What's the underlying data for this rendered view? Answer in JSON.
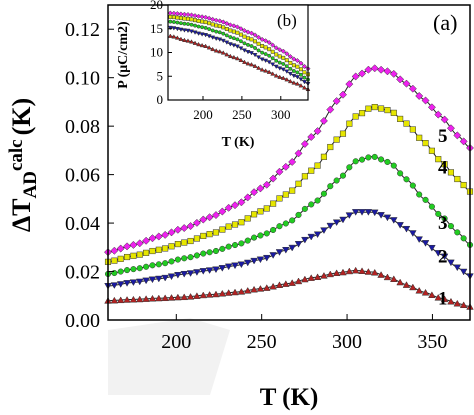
{
  "chart_data": [
    {
      "type": "scatter",
      "panel_label": "(a)",
      "xlabel": "T (K)",
      "ylabel_main": "ΔT",
      "ylabel_sub": "AD",
      "ylabel_sup": "calc",
      "ylabel_unit": "(K)",
      "xlim": [
        160,
        372
      ],
      "ylim": [
        0,
        0.13
      ],
      "xticks": [
        "200",
        "250",
        "300",
        "350"
      ],
      "yticks": [
        "0.00",
        "0.02",
        "0.04",
        "0.06",
        "0.08",
        "0.10",
        "0.12"
      ],
      "grid": false,
      "x": [
        160,
        175,
        190,
        205,
        220,
        235,
        250,
        265,
        280,
        295,
        305,
        315,
        325,
        335,
        345,
        355,
        365,
        372
      ],
      "series": [
        {
          "name": "1",
          "color": "#b22222",
          "marker": "triangle-up",
          "values": [
            0.008,
            0.0085,
            0.009,
            0.0095,
            0.0105,
            0.0115,
            0.013,
            0.015,
            0.0175,
            0.0195,
            0.0205,
            0.0198,
            0.0175,
            0.0145,
            0.0115,
            0.009,
            0.0068,
            0.0055
          ]
        },
        {
          "name": "2",
          "color": "#1a1aa0",
          "marker": "triangle-down",
          "values": [
            0.014,
            0.0155,
            0.017,
            0.019,
            0.0205,
            0.0225,
            0.025,
            0.029,
            0.0345,
            0.0405,
            0.0445,
            0.0445,
            0.042,
            0.0375,
            0.032,
            0.027,
            0.0215,
            0.018
          ]
        },
        {
          "name": "3",
          "color": "#22cc22",
          "marker": "circle",
          "values": [
            0.019,
            0.021,
            0.023,
            0.0255,
            0.028,
            0.031,
            0.035,
            0.04,
            0.048,
            0.058,
            0.0655,
            0.0675,
            0.065,
            0.058,
            0.05,
            0.043,
            0.036,
            0.031
          ]
        },
        {
          "name": "4",
          "color": "#e6e600",
          "marker": "square",
          "values": [
            0.024,
            0.0265,
            0.029,
            0.032,
            0.0355,
            0.0395,
            0.045,
            0.052,
            0.062,
            0.075,
            0.084,
            0.088,
            0.0865,
            0.081,
            0.0735,
            0.0655,
            0.058,
            0.053
          ]
        },
        {
          "name": "5",
          "color": "#ee22ee",
          "marker": "diamond",
          "values": [
            0.028,
            0.031,
            0.0345,
            0.038,
            0.0425,
            0.0475,
            0.0545,
            0.0635,
            0.076,
            0.091,
            0.1005,
            0.104,
            0.1025,
            0.0975,
            0.091,
            0.084,
            0.076,
            0.071
          ]
        }
      ]
    },
    {
      "type": "scatter",
      "panel_label": "(b)",
      "xlabel": "T (K)",
      "ylabel": "P (μC/cm2)",
      "xlim": [
        155,
        335
      ],
      "ylim": [
        0,
        20
      ],
      "xticks": [
        "200",
        "250",
        "300"
      ],
      "yticks": [
        "0",
        "5",
        "10",
        "15",
        "20"
      ],
      "x": [
        158,
        180,
        200,
        220,
        240,
        260,
        280,
        300,
        320,
        335
      ],
      "series": [
        {
          "color": "#b22222",
          "marker": "triangle-up",
          "values": [
            13.5,
            12.5,
            11.5,
            10.3,
            9.0,
            7.6,
            6.2,
            4.8,
            3.5,
            2.3
          ]
        },
        {
          "color": "#1a1aa0",
          "marker": "triangle-down",
          "values": [
            15.2,
            14.6,
            13.8,
            12.8,
            11.5,
            10.0,
            8.3,
            6.6,
            4.9,
            3.4
          ]
        },
        {
          "color": "#22cc22",
          "marker": "circle",
          "values": [
            16.5,
            16.0,
            15.3,
            14.3,
            13.0,
            11.5,
            9.7,
            7.8,
            5.9,
            4.3
          ]
        },
        {
          "color": "#e6e600",
          "marker": "square",
          "values": [
            17.5,
            17.1,
            16.5,
            15.6,
            14.4,
            12.9,
            11.1,
            9.1,
            7.1,
            5.4
          ]
        },
        {
          "color": "#ee22ee",
          "marker": "diamond",
          "values": [
            18.3,
            18.0,
            17.5,
            16.7,
            15.6,
            14.2,
            12.5,
            10.5,
            8.4,
            6.6
          ]
        }
      ]
    }
  ]
}
